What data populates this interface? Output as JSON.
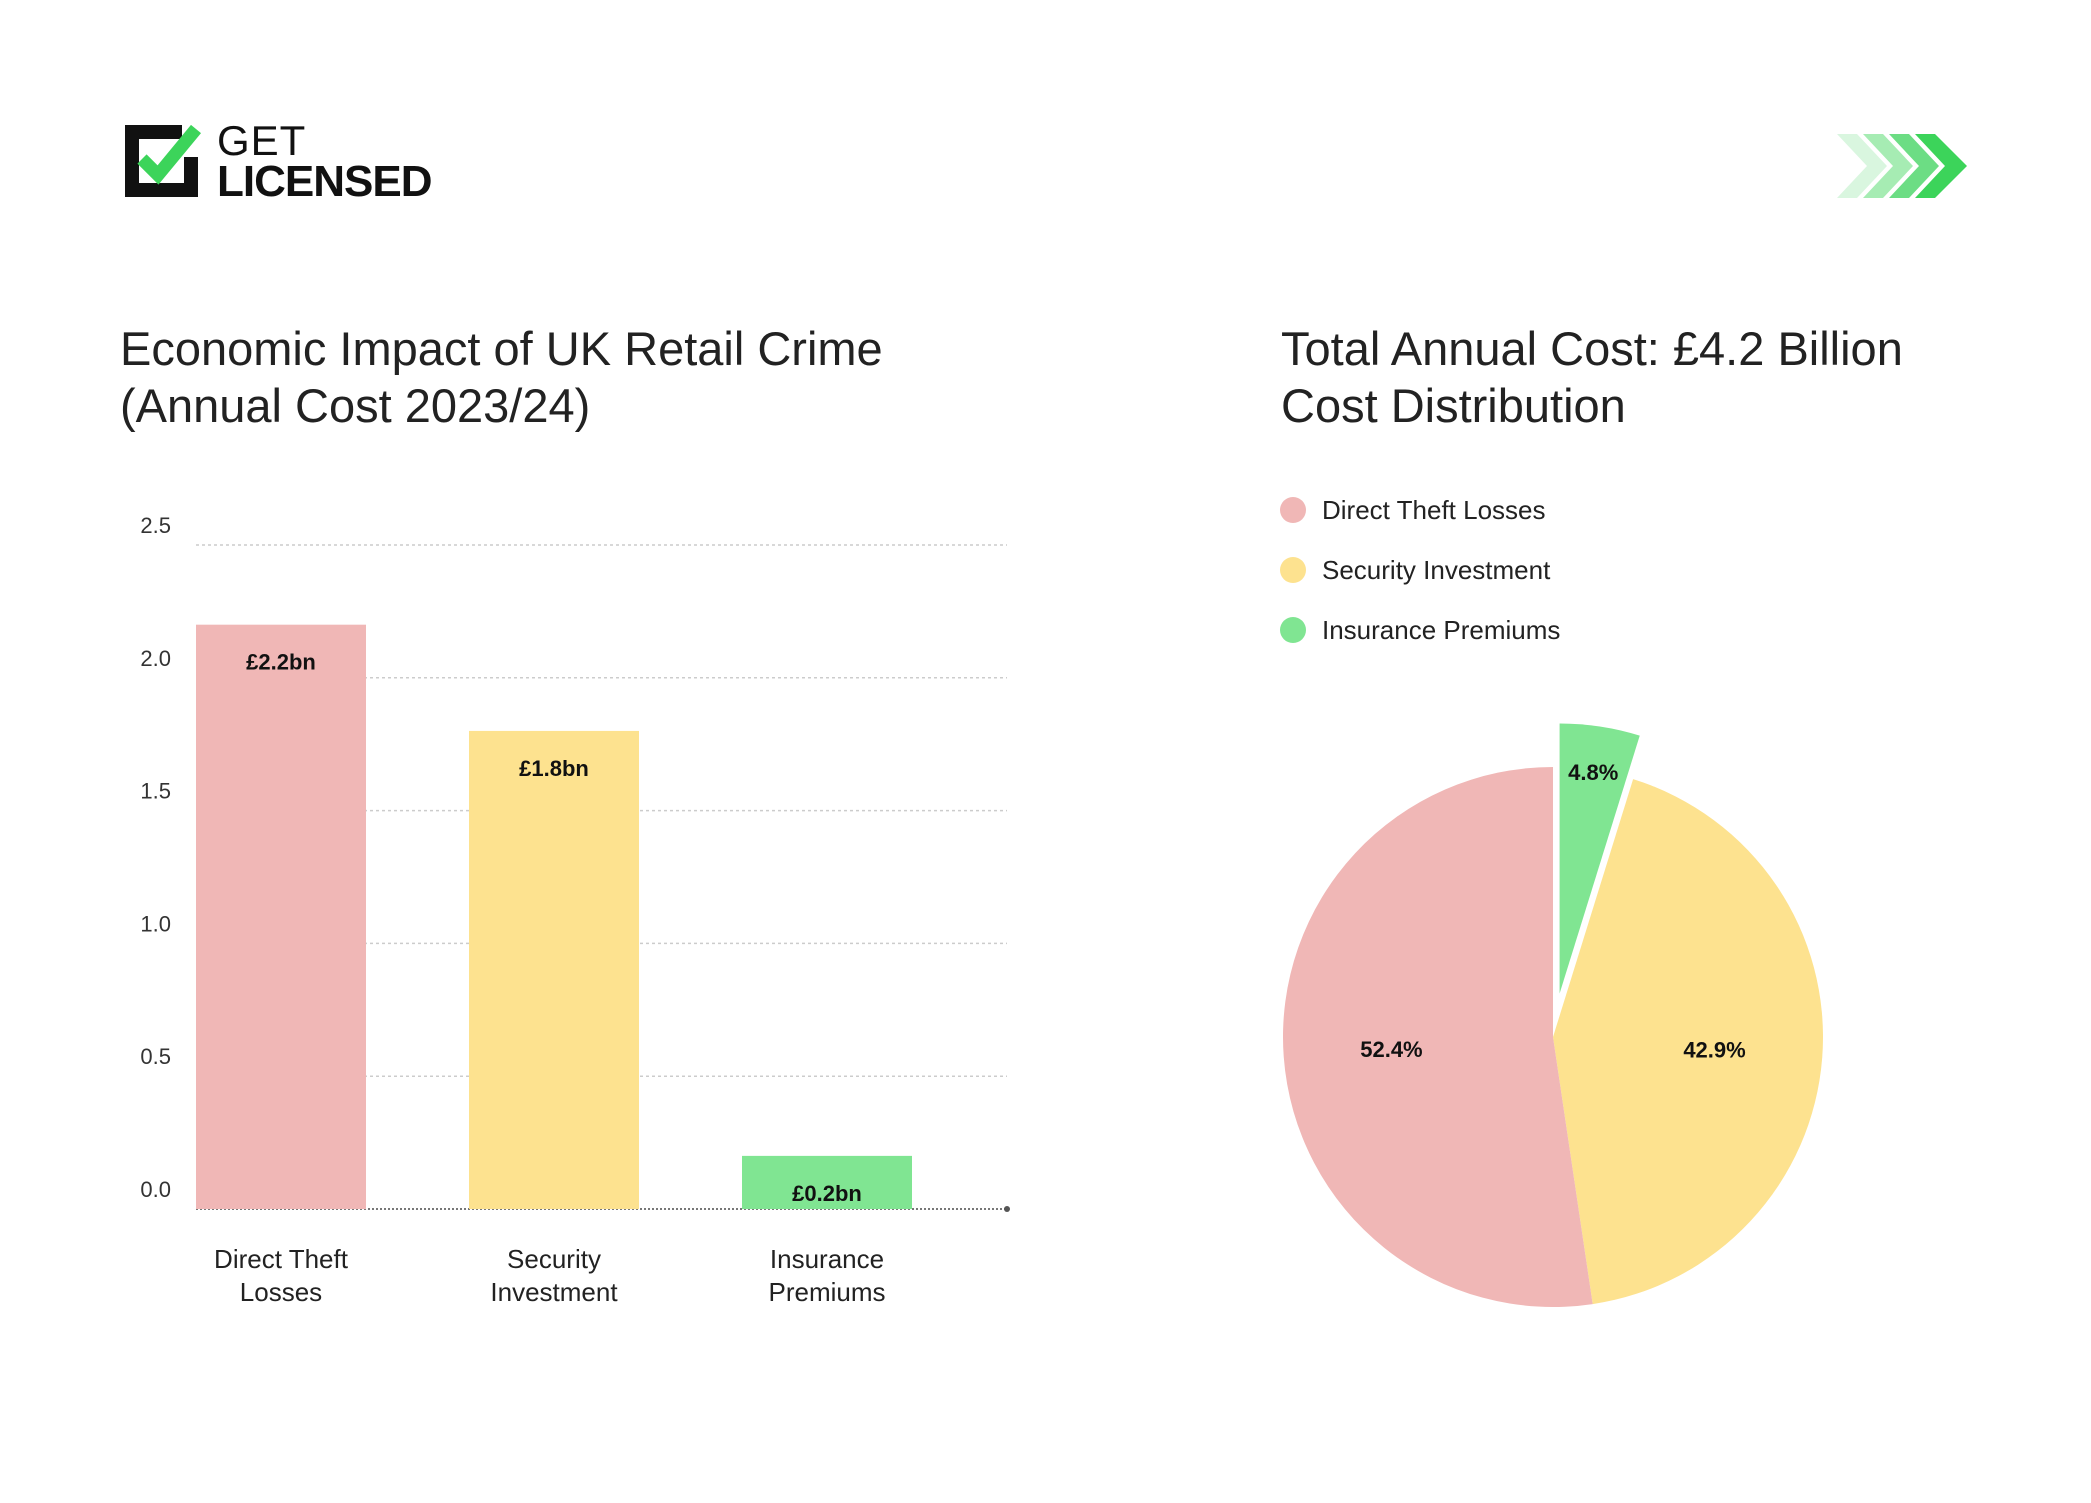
{
  "logo": {
    "line1": "GET",
    "line2": "LICENSED"
  },
  "colors": {
    "pink": "#f0b7b6",
    "yellow": "#fde28f",
    "green": "#80e592",
    "brand_green": "#3cd45a"
  },
  "chart_data": [
    {
      "type": "bar",
      "title": "Economic Impact of UK Retail Crime",
      "subtitle": "(Annual Cost 2023/24)",
      "categories": [
        [
          "Direct Theft",
          "Losses"
        ],
        [
          "Security",
          "Investment"
        ],
        [
          "Insurance",
          "Premiums"
        ]
      ],
      "values": [
        2.2,
        1.8,
        0.2
      ],
      "data_labels": [
        "£2.2bn",
        "£1.8bn",
        "£0.2bn"
      ],
      "colors": [
        "#f0b7b6",
        "#fde28f",
        "#80e592"
      ],
      "ylim": [
        0,
        2.5
      ],
      "yticks": [
        "0.0",
        "0.5",
        "1.0",
        "1.5",
        "2.0",
        "2.5"
      ],
      "grid": true,
      "xlabel": "",
      "ylabel": ""
    },
    {
      "type": "pie",
      "title": "Total Annual Cost: £4.2 Billion",
      "subtitle": "Cost Distribution",
      "labels": [
        "Insurance Premiums",
        "Security Investment",
        "Direct Theft Losses"
      ],
      "values": [
        4.8,
        42.9,
        52.4
      ],
      "data_labels": [
        "4.8%",
        "42.9%",
        "52.4%"
      ],
      "colors": [
        "#80e592",
        "#fde28f",
        "#f0b7b6"
      ],
      "exploded": [
        "Insurance Premiums"
      ],
      "start": "top",
      "direction": "clockwise",
      "legend": [
        "Direct Theft Losses",
        "Security Investment",
        "Insurance Premiums"
      ],
      "legend_colors": [
        "#f0b7b6",
        "#fde28f",
        "#80e592"
      ],
      "legend_position": "top-left"
    }
  ]
}
